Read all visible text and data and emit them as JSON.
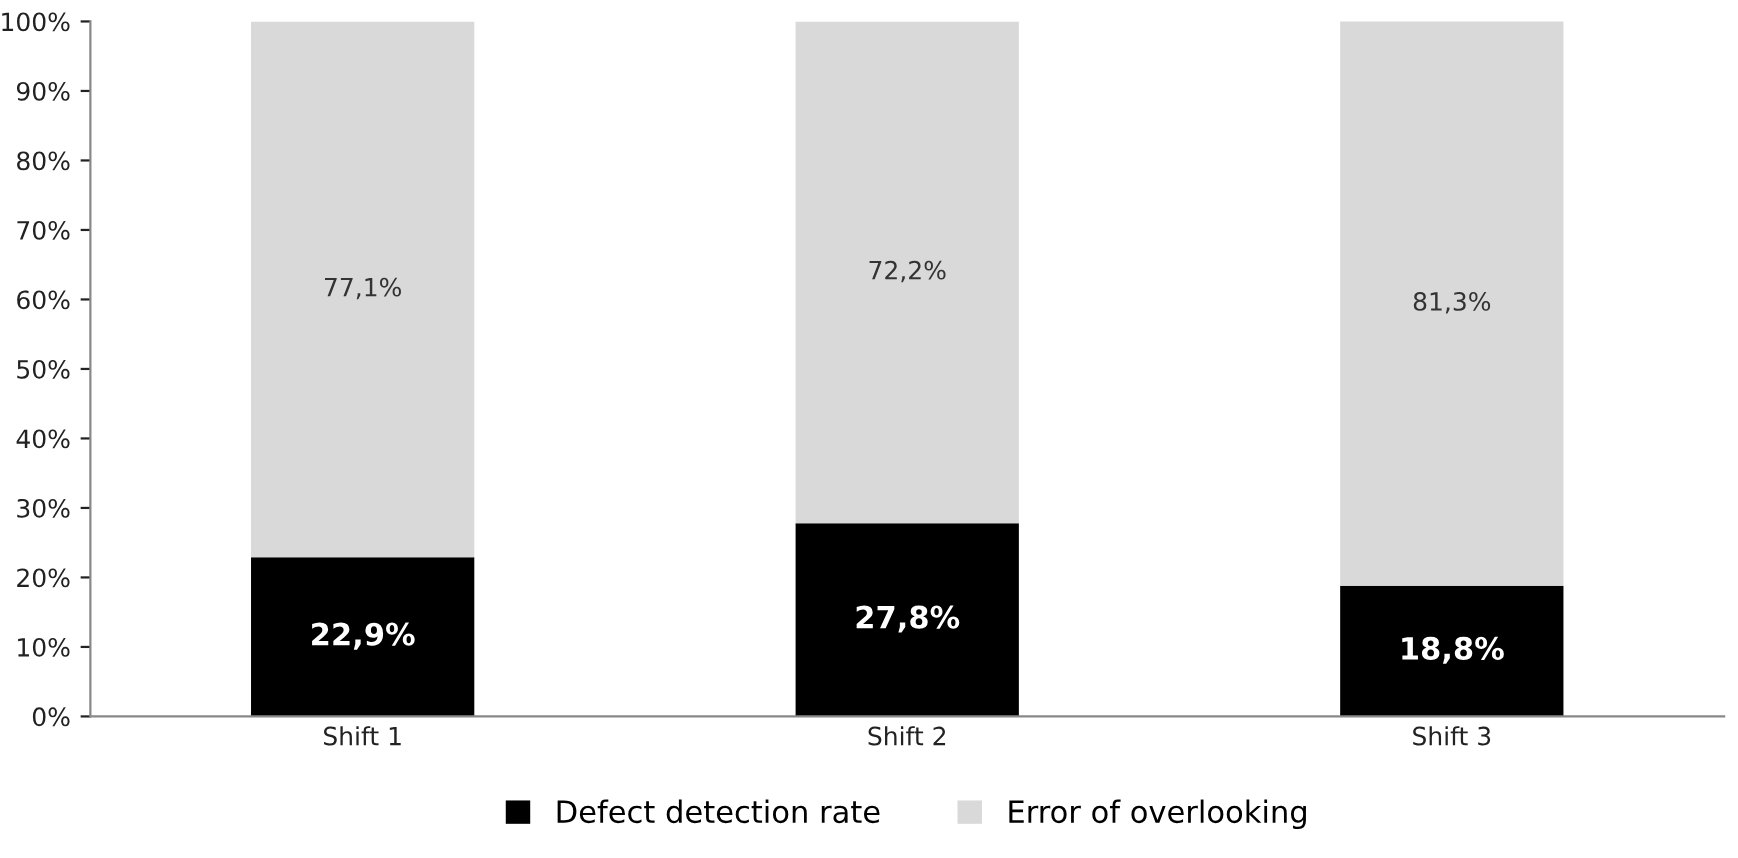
{
  "chart_data": {
    "type": "bar",
    "stacked": true,
    "categories": [
      "Shift 1",
      "Shift 2",
      "Shift 3"
    ],
    "series": [
      {
        "name": "Defect detection rate",
        "color": "#000000",
        "values": [
          22.9,
          27.8,
          18.8
        ],
        "value_labels": [
          "22,9%",
          "27,8%",
          "18,8%"
        ]
      },
      {
        "name": "Error of overlooking",
        "color": "#d9d9d9",
        "values": [
          77.1,
          72.2,
          81.3
        ],
        "value_labels": [
          "77,1%",
          "72,2%",
          "81,3%"
        ]
      }
    ],
    "ylim": [
      0,
      100
    ],
    "yticks": [
      {
        "value": 0,
        "label": "0%"
      },
      {
        "value": 10,
        "label": "10%"
      },
      {
        "value": 20,
        "label": "20%"
      },
      {
        "value": 30,
        "label": "30%"
      },
      {
        "value": 40,
        "label": "40%"
      },
      {
        "value": 50,
        "label": "50%"
      },
      {
        "value": 60,
        "label": "60%"
      },
      {
        "value": 70,
        "label": "70%"
      },
      {
        "value": 80,
        "label": "80%"
      },
      {
        "value": 90,
        "label": "90%"
      },
      {
        "value": 100,
        "label": "100%"
      }
    ],
    "grid": false,
    "legend": "bottom"
  }
}
